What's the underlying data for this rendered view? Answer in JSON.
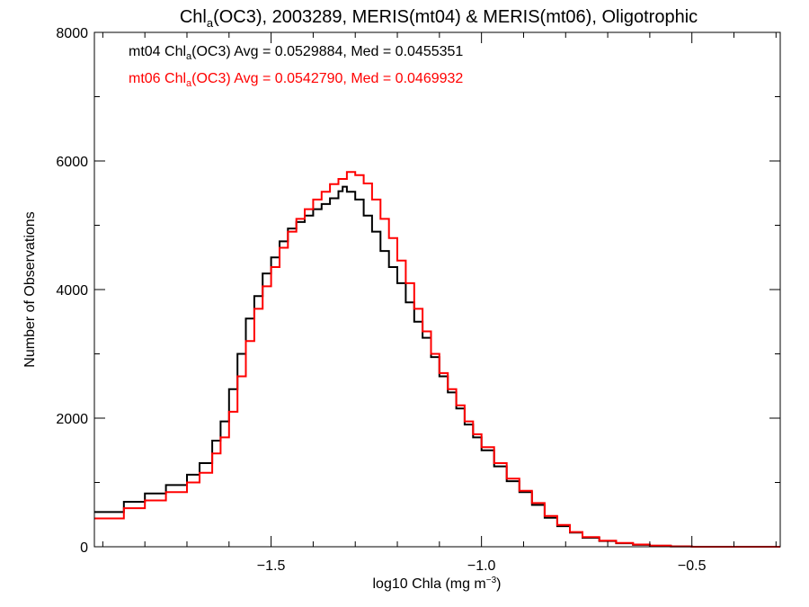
{
  "chart_data": {
    "type": "line",
    "step": true,
    "title": {
      "pre": "Chl",
      "sub": "a",
      "post": "(OC3), 2003289, MERIS(mt04) & MERIS(mt06), Oligotrophic"
    },
    "xlabel": {
      "pre": "log10 Chla (mg m",
      "sup": "−3",
      "post": ")"
    },
    "ylabel": "Number of Observations",
    "xlim": [
      -1.92,
      -0.29
    ],
    "ylim": [
      0,
      8000
    ],
    "xticks": [
      {
        "value": -1.5,
        "label": "−1.5"
      },
      {
        "value": -1.0,
        "label": "−1.0"
      },
      {
        "value": -0.5,
        "label": "−0.5"
      }
    ],
    "yticks": [
      {
        "value": 0,
        "label": "0"
      },
      {
        "value": 2000,
        "label": "2000"
      },
      {
        "value": 4000,
        "label": "4000"
      },
      {
        "value": 6000,
        "label": "6000"
      },
      {
        "value": 8000,
        "label": "8000"
      }
    ],
    "legend_position": "top-left",
    "grid": false,
    "series": [
      {
        "name": "mt04",
        "color": "#000000",
        "legend": {
          "pre": "mt04 Chl",
          "sub": "a",
          "post": "(OC3) Avg = 0.0529884, Med = 0.0455351"
        },
        "points": [
          [
            -1.92,
            540
          ],
          [
            -1.85,
            700
          ],
          [
            -1.8,
            830
          ],
          [
            -1.75,
            960
          ],
          [
            -1.7,
            1120
          ],
          [
            -1.67,
            1300
          ],
          [
            -1.64,
            1650
          ],
          [
            -1.62,
            1950
          ],
          [
            -1.6,
            2450
          ],
          [
            -1.58,
            3000
          ],
          [
            -1.56,
            3550
          ],
          [
            -1.54,
            3900
          ],
          [
            -1.52,
            4250
          ],
          [
            -1.5,
            4500
          ],
          [
            -1.48,
            4750
          ],
          [
            -1.46,
            4950
          ],
          [
            -1.44,
            5050
          ],
          [
            -1.42,
            5150
          ],
          [
            -1.4,
            5250
          ],
          [
            -1.38,
            5330
          ],
          [
            -1.36,
            5420
          ],
          [
            -1.34,
            5530
          ],
          [
            -1.33,
            5600
          ],
          [
            -1.32,
            5520
          ],
          [
            -1.3,
            5400
          ],
          [
            -1.28,
            5150
          ],
          [
            -1.26,
            4900
          ],
          [
            -1.24,
            4600
          ],
          [
            -1.22,
            4350
          ],
          [
            -1.2,
            4100
          ],
          [
            -1.18,
            3800
          ],
          [
            -1.16,
            3500
          ],
          [
            -1.14,
            3250
          ],
          [
            -1.12,
            2950
          ],
          [
            -1.1,
            2650
          ],
          [
            -1.08,
            2400
          ],
          [
            -1.06,
            2150
          ],
          [
            -1.04,
            1900
          ],
          [
            -1.02,
            1700
          ],
          [
            -1.0,
            1500
          ],
          [
            -0.97,
            1250
          ],
          [
            -0.94,
            1020
          ],
          [
            -0.91,
            850
          ],
          [
            -0.88,
            650
          ],
          [
            -0.85,
            450
          ],
          [
            -0.82,
            320
          ],
          [
            -0.79,
            220
          ],
          [
            -0.76,
            140
          ],
          [
            -0.72,
            90
          ],
          [
            -0.68,
            55
          ],
          [
            -0.64,
            30
          ],
          [
            -0.6,
            15
          ],
          [
            -0.55,
            5
          ],
          [
            -0.5,
            0
          ],
          [
            -0.29,
            0
          ]
        ]
      },
      {
        "name": "mt06",
        "color": "#ff0000",
        "legend": {
          "pre": "mt06 Chl",
          "sub": "a",
          "post": "(OC3) Avg = 0.0542790, Med = 0.0469932"
        },
        "points": [
          [
            -1.92,
            440
          ],
          [
            -1.85,
            600
          ],
          [
            -1.8,
            720
          ],
          [
            -1.75,
            850
          ],
          [
            -1.7,
            1000
          ],
          [
            -1.67,
            1150
          ],
          [
            -1.64,
            1450
          ],
          [
            -1.62,
            1700
          ],
          [
            -1.6,
            2100
          ],
          [
            -1.58,
            2650
          ],
          [
            -1.56,
            3200
          ],
          [
            -1.54,
            3700
          ],
          [
            -1.52,
            4050
          ],
          [
            -1.5,
            4350
          ],
          [
            -1.48,
            4650
          ],
          [
            -1.46,
            4900
          ],
          [
            -1.44,
            5100
          ],
          [
            -1.42,
            5250
          ],
          [
            -1.4,
            5400
          ],
          [
            -1.38,
            5520
          ],
          [
            -1.36,
            5640
          ],
          [
            -1.34,
            5720
          ],
          [
            -1.32,
            5830
          ],
          [
            -1.3,
            5780
          ],
          [
            -1.28,
            5650
          ],
          [
            -1.26,
            5400
          ],
          [
            -1.24,
            5100
          ],
          [
            -1.22,
            4800
          ],
          [
            -1.2,
            4450
          ],
          [
            -1.18,
            4100
          ],
          [
            -1.16,
            3700
          ],
          [
            -1.14,
            3350
          ],
          [
            -1.12,
            3000
          ],
          [
            -1.1,
            2700
          ],
          [
            -1.08,
            2450
          ],
          [
            -1.06,
            2200
          ],
          [
            -1.04,
            1950
          ],
          [
            -1.02,
            1750
          ],
          [
            -1.0,
            1550
          ],
          [
            -0.97,
            1300
          ],
          [
            -0.94,
            1060
          ],
          [
            -0.91,
            870
          ],
          [
            -0.88,
            680
          ],
          [
            -0.85,
            480
          ],
          [
            -0.82,
            340
          ],
          [
            -0.79,
            230
          ],
          [
            -0.76,
            150
          ],
          [
            -0.72,
            95
          ],
          [
            -0.68,
            60
          ],
          [
            -0.64,
            35
          ],
          [
            -0.6,
            18
          ],
          [
            -0.55,
            6
          ],
          [
            -0.5,
            0
          ],
          [
            -0.29,
            0
          ]
        ]
      }
    ]
  }
}
